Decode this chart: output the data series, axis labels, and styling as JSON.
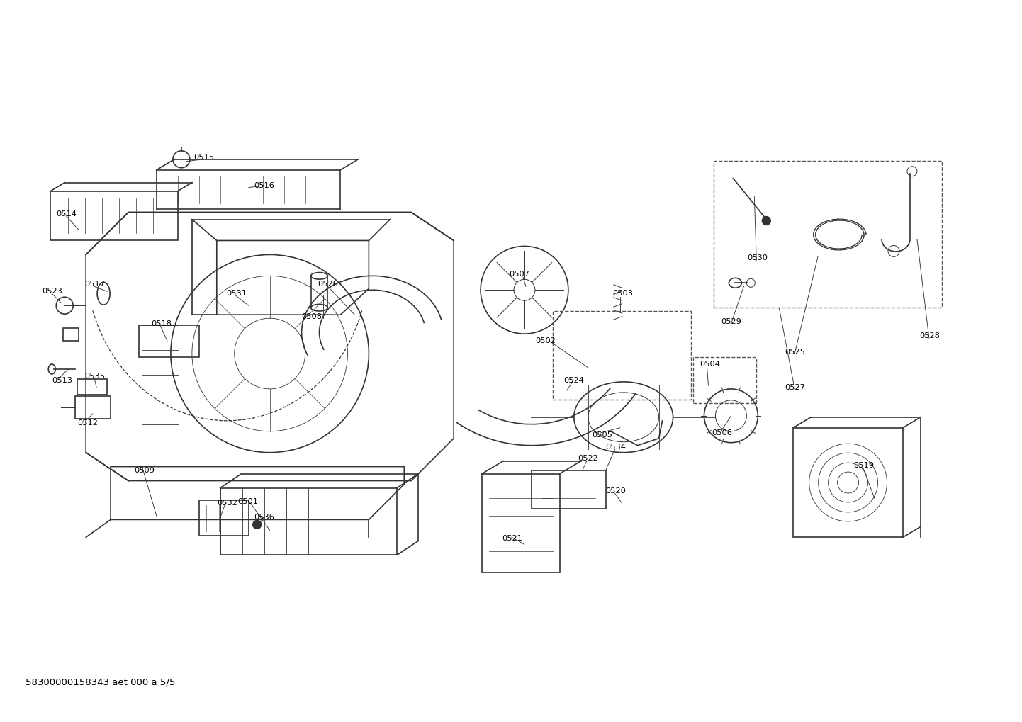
{
  "title": "",
  "footer_text": "58300000158343 aet 000 a 5/5",
  "background_color": "#ffffff",
  "line_color": "#333333",
  "dashed_box_color": "#555555",
  "label_color": "#000000",
  "figsize": [
    14.42,
    10.19
  ],
  "dpi": 100
}
